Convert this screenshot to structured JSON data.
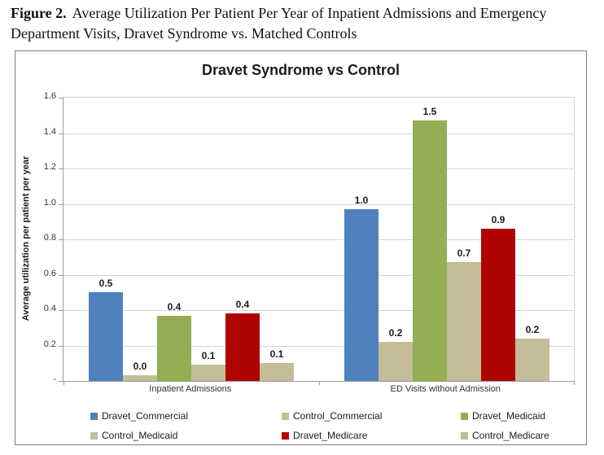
{
  "figure_caption": {
    "label": "Figure 2.",
    "text": "Average Utilization Per Patient Per Year of Inpatient Admissions and Emergency Department Visits, Dravet Syndrome vs. Matched Controls"
  },
  "chart_data": {
    "type": "bar",
    "title": "Dravet Syndrome vs Control",
    "ylabel": "Average utilization per patient per year",
    "xlabel": "",
    "categories": [
      "Inpatient Admissions",
      "ED Visits without Admission"
    ],
    "series": [
      {
        "name": "Dravet_Commercial",
        "color": "#4E81BD",
        "values": [
          0.5,
          1.0
        ],
        "bar_heights": [
          0.5,
          0.97
        ]
      },
      {
        "name": "Control_Commercial",
        "color": "#C4BD97",
        "values": [
          0.0,
          0.2
        ],
        "bar_heights": [
          0.03,
          0.22
        ]
      },
      {
        "name": "Dravet_Medicaid",
        "color": "#94AE53",
        "values": [
          0.4,
          1.5
        ],
        "bar_heights": [
          0.37,
          1.47
        ]
      },
      {
        "name": "Control_Medicaid",
        "color": "#C4BD97",
        "values": [
          0.1,
          0.7
        ],
        "bar_heights": [
          0.09,
          0.67
        ]
      },
      {
        "name": "Dravet_Medicare",
        "color": "#AF0402",
        "values": [
          0.4,
          0.9
        ],
        "bar_heights": [
          0.38,
          0.86
        ]
      },
      {
        "name": "Control_Medicare",
        "color": "#C4BD97",
        "values": [
          0.1,
          0.2
        ],
        "bar_heights": [
          0.1,
          0.24
        ]
      }
    ],
    "y_ticks": [
      "1.6",
      "1.4",
      "1.2",
      "1.0",
      "0.8",
      "0.6",
      "0.4",
      "0.2",
      "-"
    ],
    "ylim": [
      0,
      1.6
    ],
    "grid": true,
    "legend_position": "bottom"
  }
}
